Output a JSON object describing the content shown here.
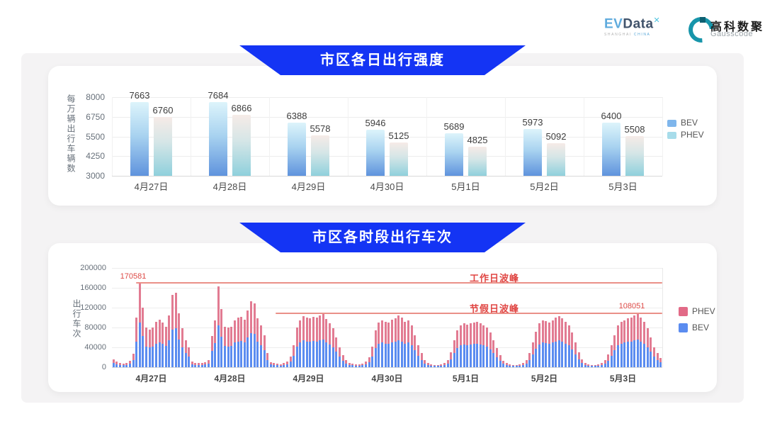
{
  "header": {
    "evdata": {
      "ev": "EV",
      "data": "Data",
      "sup_icon": "x-arrow-icon",
      "sup_glyph": "✕",
      "tagline_left": "SHANGHAI",
      "tagline_right": "CHINA"
    },
    "gausscode": {
      "icon": "g-ring-icon",
      "name_cn": "高科数聚",
      "name_en": "Gausscode"
    }
  },
  "colors": {
    "banner_blue": "#1434f4",
    "top_bev_gradient_top": "#ddf4fb",
    "top_bev_gradient_bottom": "#5f93dd",
    "top_phev_gradient_top": "#f6ebe7",
    "top_phev_gradient_bottom": "#8fd0dc",
    "bottom_bev": "#5b8cf0",
    "bottom_phev": "#e27b92",
    "annotation_red": "#dd4b47",
    "peak_line_red": "#ea9088"
  },
  "chart_data": [
    {
      "type": "bar",
      "title": "市区各日出行强度",
      "ylabel": "每万辆出行车辆数",
      "categories": [
        "4月27日",
        "4月28日",
        "4月29日",
        "4月30日",
        "5月1日",
        "5月2日",
        "5月3日"
      ],
      "series": [
        {
          "name": "BEV",
          "values": [
            7663,
            7684,
            6388,
            5946,
            5689,
            5973,
            6400
          ]
        },
        {
          "name": "PHEV",
          "values": [
            6760,
            6866,
            5578,
            5125,
            4825,
            5092,
            5508
          ]
        }
      ],
      "yticks": [
        3000,
        4250,
        5500,
        6750,
        8000
      ],
      "ylim": [
        3000,
        8000
      ],
      "grid": true,
      "legend_position": "right"
    },
    {
      "type": "stacked-bar",
      "title": "市区各时段出行车次",
      "ylabel": "出行车次",
      "categories": [
        "4月27日",
        "4月28日",
        "4月29日",
        "4月30日",
        "5月1日",
        "5月2日",
        "5月3日"
      ],
      "hours_per_day": 24,
      "yticks": [
        0,
        40000,
        80000,
        120000,
        160000,
        200000
      ],
      "ylim": [
        0,
        200000
      ],
      "grid": true,
      "legend_position": "right",
      "series": [
        {
          "name": "BEV",
          "values": [
            8300,
            5700,
            4200,
            3600,
            4200,
            6800,
            14000,
            52000,
            90400,
            62400,
            41600,
            39500,
            41600,
            47800,
            49900,
            46800,
            42600,
            54100,
            75900,
            78000,
            56200,
            40600,
            28600,
            20800,
            6200,
            4700,
            4200,
            4200,
            5200,
            7300,
            32800,
            48900,
            84800,
            60800,
            42600,
            41600,
            42600,
            49400,
            52000,
            53000,
            49900,
            59800,
            69200,
            67100,
            51500,
            44200,
            33800,
            14600,
            5200,
            4200,
            3600,
            3100,
            4200,
            6200,
            11400,
            23400,
            41600,
            49400,
            53600,
            52000,
            51000,
            53000,
            52000,
            54100,
            56200,
            50400,
            45800,
            40600,
            31200,
            20800,
            13000,
            7300,
            4700,
            3600,
            3100,
            3100,
            3600,
            5700,
            10400,
            21800,
            39000,
            46800,
            49400,
            47800,
            46800,
            49900,
            51000,
            54600,
            52000,
            47800,
            49400,
            44200,
            33800,
            23400,
            14600,
            7800,
            4200,
            3100,
            2600,
            2600,
            3100,
            4700,
            7800,
            15600,
            28600,
            39000,
            44200,
            45800,
            44700,
            45800,
            46800,
            47800,
            45800,
            44200,
            41600,
            36400,
            28600,
            19800,
            12500,
            6800,
            4200,
            3100,
            2600,
            2600,
            3100,
            4700,
            7300,
            14600,
            26000,
            37400,
            45800,
            49400,
            48400,
            46800,
            49400,
            52000,
            53600,
            51000,
            47800,
            44200,
            36400,
            26000,
            15600,
            8300,
            4200,
            3100,
            2600,
            2600,
            3100,
            4700,
            7300,
            13500,
            23400,
            33800,
            44200,
            47800,
            49400,
            51000,
            52000,
            54100,
            56200,
            52000,
            47800,
            40600,
            31200,
            20800,
            14600,
            9400
          ]
        },
        {
          "name": "PHEV",
          "values": [
            7700,
            5300,
            3800,
            3400,
            3800,
            6200,
            13000,
            48000,
            80181,
            57600,
            38400,
            36500,
            38400,
            44200,
            46100,
            43200,
            39400,
            49900,
            70100,
            72000,
            51800,
            37400,
            26400,
            19200,
            5800,
            4300,
            3800,
            3800,
            4800,
            6700,
            30200,
            45100,
            78200,
            56200,
            39400,
            38400,
            39400,
            45600,
            48000,
            49000,
            46100,
            55200,
            63800,
            61900,
            47500,
            40800,
            31200,
            13400,
            4800,
            3800,
            3400,
            2900,
            3800,
            5800,
            10600,
            21600,
            38400,
            45600,
            49400,
            48000,
            47000,
            49000,
            48000,
            49900,
            51800,
            46600,
            42200,
            37400,
            28800,
            19200,
            12000,
            6700,
            4300,
            3400,
            2900,
            2900,
            3400,
            5300,
            9600,
            20200,
            36000,
            43200,
            45600,
            44200,
            43200,
            46100,
            47000,
            50400,
            48000,
            44200,
            45600,
            40800,
            31200,
            21600,
            13400,
            7200,
            3800,
            2900,
            2400,
            2400,
            2900,
            4300,
            7200,
            14400,
            26400,
            36000,
            40800,
            42200,
            41300,
            42200,
            43200,
            44200,
            42200,
            40800,
            38400,
            33600,
            26400,
            18200,
            11500,
            6200,
            3800,
            2900,
            2400,
            2400,
            2900,
            4300,
            6700,
            13400,
            24000,
            34600,
            42200,
            45600,
            44600,
            43200,
            45600,
            48000,
            49400,
            47000,
            44200,
            40800,
            33600,
            24000,
            14400,
            7700,
            3800,
            2900,
            2400,
            2400,
            2900,
            4300,
            6700,
            12500,
            21600,
            31200,
            40800,
            44200,
            45600,
            47000,
            48000,
            49900,
            51851,
            48000,
            44200,
            37400,
            28800,
            19200,
            13400,
            8600
          ]
        }
      ],
      "annotations": {
        "workday": {
          "label": "工作日波峰",
          "value": 170581,
          "value_label": "170581"
        },
        "holiday": {
          "label": "节假日波峰",
          "value": 108051,
          "value_label": "108051"
        }
      }
    }
  ]
}
